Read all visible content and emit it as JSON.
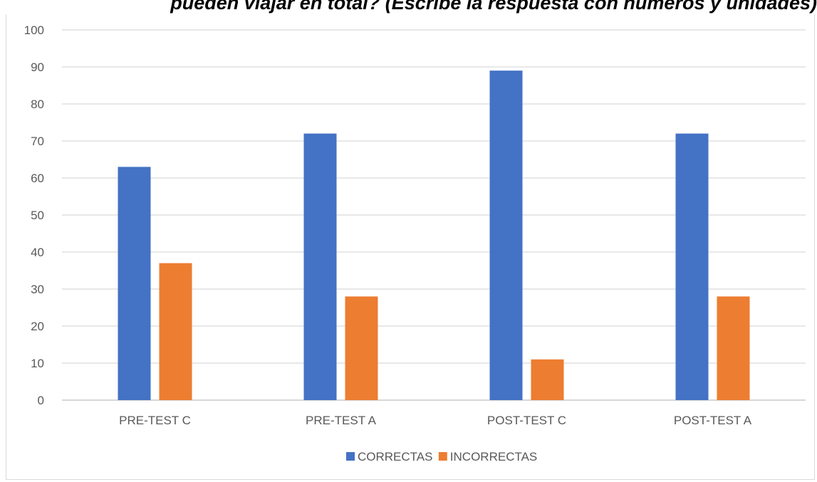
{
  "title": "pueden viajar en total? (Escribe la respuesta con números y unidades)",
  "chart_data": {
    "type": "bar",
    "title": "",
    "xlabel": "",
    "ylabel": "",
    "ylim": [
      0,
      100
    ],
    "yticks": [
      0,
      10,
      20,
      30,
      40,
      50,
      60,
      70,
      80,
      90,
      100
    ],
    "grid": true,
    "legend_position": "bottom",
    "categories": [
      "PRE-TEST C",
      "PRE-TEST A",
      "POST-TEST C",
      "POST-TEST A"
    ],
    "series": [
      {
        "name": "CORRECTAS",
        "color": "#4472c4",
        "values": [
          63,
          72,
          89,
          72
        ]
      },
      {
        "name": "INCORRECTAS",
        "color": "#ed7d31",
        "values": [
          37,
          28,
          11,
          28
        ]
      }
    ]
  }
}
